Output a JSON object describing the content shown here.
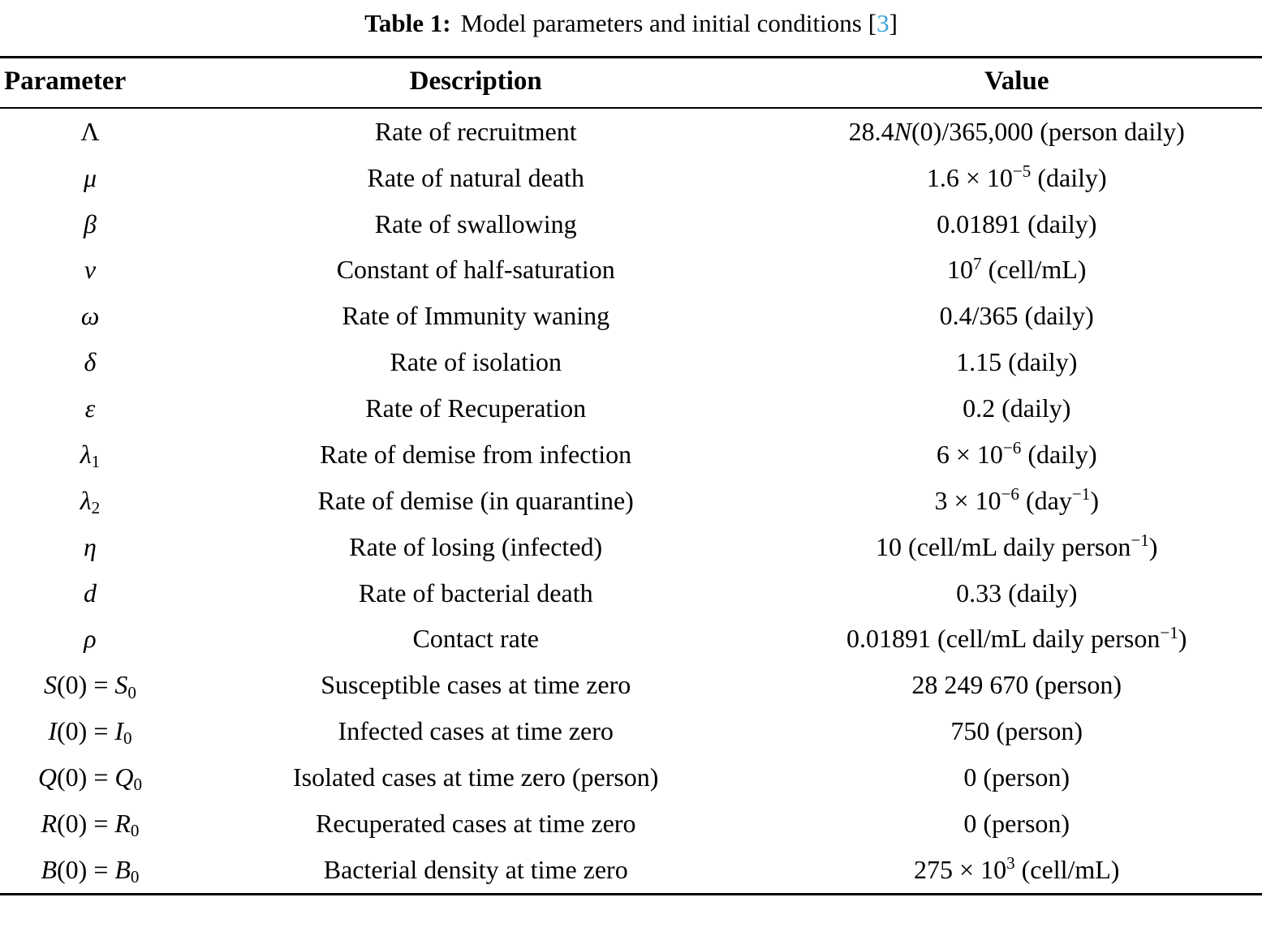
{
  "colors": {
    "citation": "#3ba2d8",
    "text": "#000000",
    "background": "#ffffff"
  },
  "caption": {
    "label": "Table 1:",
    "text": "Model parameters and initial conditions",
    "bracket_open": "[",
    "citation": "3",
    "bracket_close": "]"
  },
  "table": {
    "headers": [
      "Parameter",
      "Description",
      "Value"
    ],
    "rows": [
      {
        "parameter": [
          {
            "t": "Λ"
          }
        ],
        "description": "Rate of recruitment",
        "value": [
          {
            "t": "28.4"
          },
          {
            "i": "N"
          },
          {
            "t": "(0)/365,000 (person daily)"
          }
        ]
      },
      {
        "parameter": [
          {
            "i": "μ"
          }
        ],
        "description": "Rate of natural death",
        "value": [
          {
            "t": "1.6 × 10"
          },
          {
            "sup": "−5"
          },
          {
            "t": " (daily)"
          }
        ]
      },
      {
        "parameter": [
          {
            "i": "β"
          }
        ],
        "description": "Rate of swallowing",
        "value": [
          {
            "t": "0.01891 (daily)"
          }
        ]
      },
      {
        "parameter": [
          {
            "i": "ν"
          }
        ],
        "description": "Constant of half-saturation",
        "value": [
          {
            "t": "10"
          },
          {
            "sup": "7"
          },
          {
            "t": " (cell/mL)"
          }
        ]
      },
      {
        "parameter": [
          {
            "i": "ω"
          }
        ],
        "description": "Rate of Immunity waning",
        "value": [
          {
            "t": "0.4/365 (daily)"
          }
        ]
      },
      {
        "parameter": [
          {
            "i": "δ"
          }
        ],
        "description": "Rate of isolation",
        "value": [
          {
            "t": "1.15 (daily)"
          }
        ]
      },
      {
        "parameter": [
          {
            "i": "ε"
          }
        ],
        "description": "Rate of Recuperation",
        "value": [
          {
            "t": "0.2 (daily)"
          }
        ]
      },
      {
        "parameter": [
          {
            "i": "λ"
          },
          {
            "sub": "1"
          }
        ],
        "description": "Rate of demise from infection",
        "value": [
          {
            "t": "6 × 10"
          },
          {
            "sup": "−6"
          },
          {
            "t": " (daily)"
          }
        ]
      },
      {
        "parameter": [
          {
            "i": "λ"
          },
          {
            "sub": "2"
          }
        ],
        "description": "Rate of demise (in quarantine)",
        "value": [
          {
            "t": "3 × 10"
          },
          {
            "sup": "−6"
          },
          {
            "t": " (day"
          },
          {
            "sup": "−1"
          },
          {
            "t": ")"
          }
        ]
      },
      {
        "parameter": [
          {
            "i": "η"
          }
        ],
        "description": "Rate of losing (infected)",
        "value": [
          {
            "t": "10 (cell/mL daily person"
          },
          {
            "sup": "−1"
          },
          {
            "t": ")"
          }
        ]
      },
      {
        "parameter": [
          {
            "i": "d"
          }
        ],
        "description": "Rate of bacterial death",
        "value": [
          {
            "t": "0.33 (daily)"
          }
        ]
      },
      {
        "parameter": [
          {
            "i": "ρ"
          }
        ],
        "description": "Contact rate",
        "value": [
          {
            "t": "0.01891 (cell/mL daily person"
          },
          {
            "sup": "−1"
          },
          {
            "t": ")"
          }
        ]
      },
      {
        "parameter": [
          {
            "i": "S"
          },
          {
            "t": "(0) = "
          },
          {
            "i": "S"
          },
          {
            "sub": "0"
          }
        ],
        "description": "Susceptible cases at time zero",
        "value": [
          {
            "t": "28 249 670 (person)"
          }
        ]
      },
      {
        "parameter": [
          {
            "i": "I"
          },
          {
            "t": "(0) = "
          },
          {
            "i": "I"
          },
          {
            "sub": "0"
          }
        ],
        "description": "Infected cases at time zero",
        "value": [
          {
            "t": "750 (person)"
          }
        ]
      },
      {
        "parameter": [
          {
            "i": "Q"
          },
          {
            "t": "(0) = "
          },
          {
            "i": "Q"
          },
          {
            "sub": "0"
          }
        ],
        "description": "Isolated cases at time zero (person)",
        "value": [
          {
            "t": "0 (person)"
          }
        ]
      },
      {
        "parameter": [
          {
            "i": "R"
          },
          {
            "t": "(0) = "
          },
          {
            "i": "R"
          },
          {
            "sub": "0"
          }
        ],
        "description": "Recuperated cases at time zero",
        "value": [
          {
            "t": "0 (person)"
          }
        ]
      },
      {
        "parameter": [
          {
            "i": "B"
          },
          {
            "t": "(0) = "
          },
          {
            "i": "B"
          },
          {
            "sub": "0"
          }
        ],
        "description": "Bacterial density at time zero",
        "value": [
          {
            "t": "275 × 10"
          },
          {
            "sup": "3"
          },
          {
            "t": " (cell/mL)"
          }
        ]
      }
    ]
  }
}
